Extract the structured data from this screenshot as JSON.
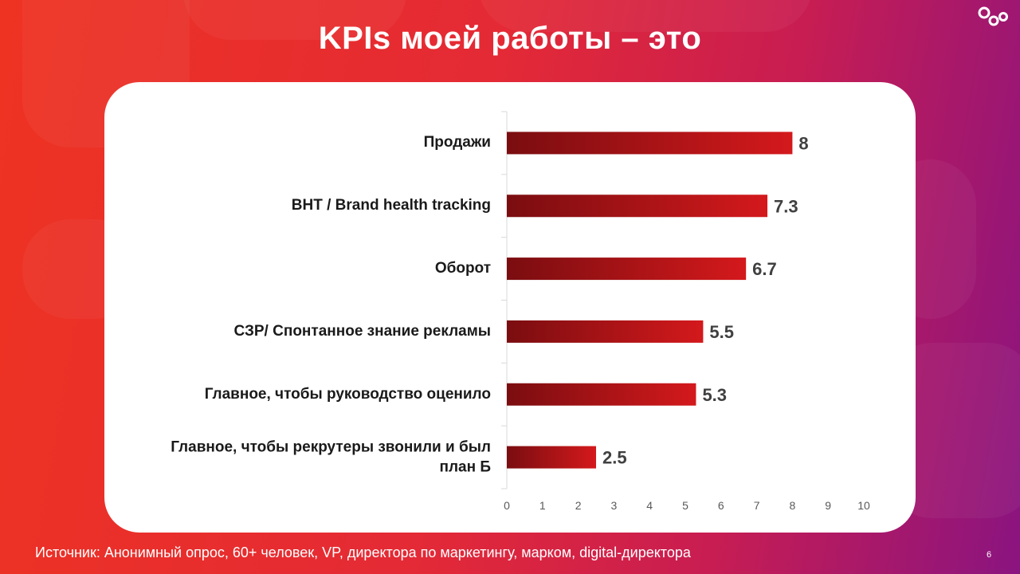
{
  "slide": {
    "title": "KPIs моей работы – это",
    "source": "Источник: Анонимный опрос, 60+ человек, VP, директора по маркетингу, марком, digital-директора",
    "page_number": "6"
  },
  "colors": {
    "bar_dark": "#7a0d10",
    "bar_light": "#d4191c",
    "value_text": "#404040",
    "tick_text": "#595959"
  },
  "chart_data": {
    "type": "bar",
    "orientation": "horizontal",
    "categories": [
      "Продажи",
      "BHT / Brand health tracking",
      "Оборот",
      "СЗР/ Спонтанное знание рекламы",
      "Главное, чтобы руководство оценило",
      "Главное, чтобы рекрутеры звонили и был план Б"
    ],
    "values": [
      8,
      7.3,
      6.7,
      5.5,
      5.3,
      2.5
    ],
    "value_labels": [
      "8",
      "7.3",
      "6.7",
      "5.5",
      "5.3",
      "2.5"
    ],
    "xlim": [
      0,
      10
    ],
    "xticks": [
      "0",
      "1",
      "2",
      "3",
      "4",
      "5",
      "6",
      "7",
      "8",
      "9",
      "10"
    ],
    "title": "",
    "xlabel": "",
    "ylabel": "",
    "grid": false,
    "legend": "none"
  }
}
